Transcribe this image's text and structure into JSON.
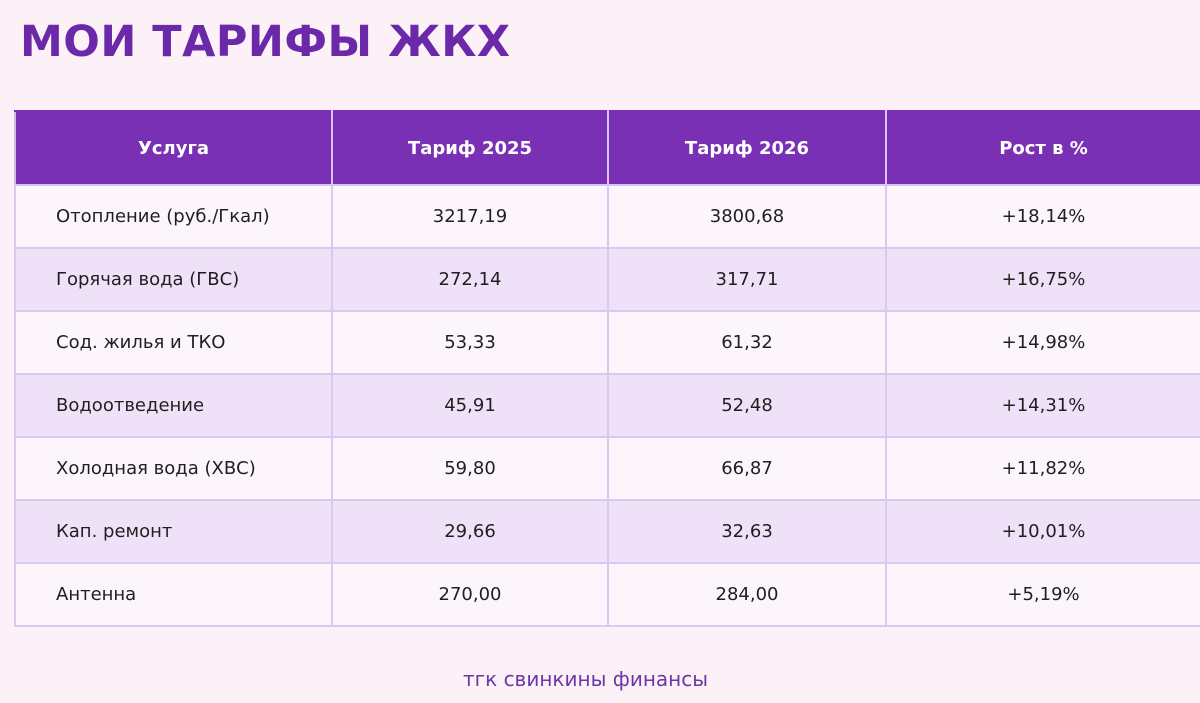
{
  "title": "МОИ ТАРИФЫ ЖКХ",
  "colors": {
    "title": "#6b28a9",
    "header_bg": "#7a30b4",
    "header_text": "#ffffff",
    "row_alt_bg": "#efe2f8",
    "row_bg": "#fcf5fb",
    "page_bg": "#fdf1f8",
    "grid_lines": "#d9c9f1"
  },
  "table": {
    "headers": [
      "Услуга",
      "Тариф 2025",
      "Тариф 2026",
      "Рост в %"
    ],
    "rows": [
      {
        "service": "Отопление (руб./Гкал)",
        "tariff_2025": "3217,19",
        "tariff_2026": "3800,68",
        "growth": "+18,14%"
      },
      {
        "service": "Горячая вода (ГВС)",
        "tariff_2025": "272,14",
        "tariff_2026": "317,71",
        "growth": "+16,75%"
      },
      {
        "service": "Сод. жилья и ТКО",
        "tariff_2025": "53,33",
        "tariff_2026": "61,32",
        "growth": "+14,98%"
      },
      {
        "service": "Водоотведение",
        "tariff_2025": "45,91",
        "tariff_2026": "52,48",
        "growth": "+14,31%"
      },
      {
        "service": "Холодная вода (ХВС)",
        "tariff_2025": "59,80",
        "tariff_2026": "66,87",
        "growth": "+11,82%"
      },
      {
        "service": "Кап. ремонт",
        "tariff_2025": "29,66",
        "tariff_2026": "32,63",
        "growth": "+10,01%"
      },
      {
        "service": "Антенна",
        "tariff_2025": "270,00",
        "tariff_2026": "284,00",
        "growth": "+5,19%"
      }
    ]
  },
  "footer": "тгк свинкины финансы"
}
